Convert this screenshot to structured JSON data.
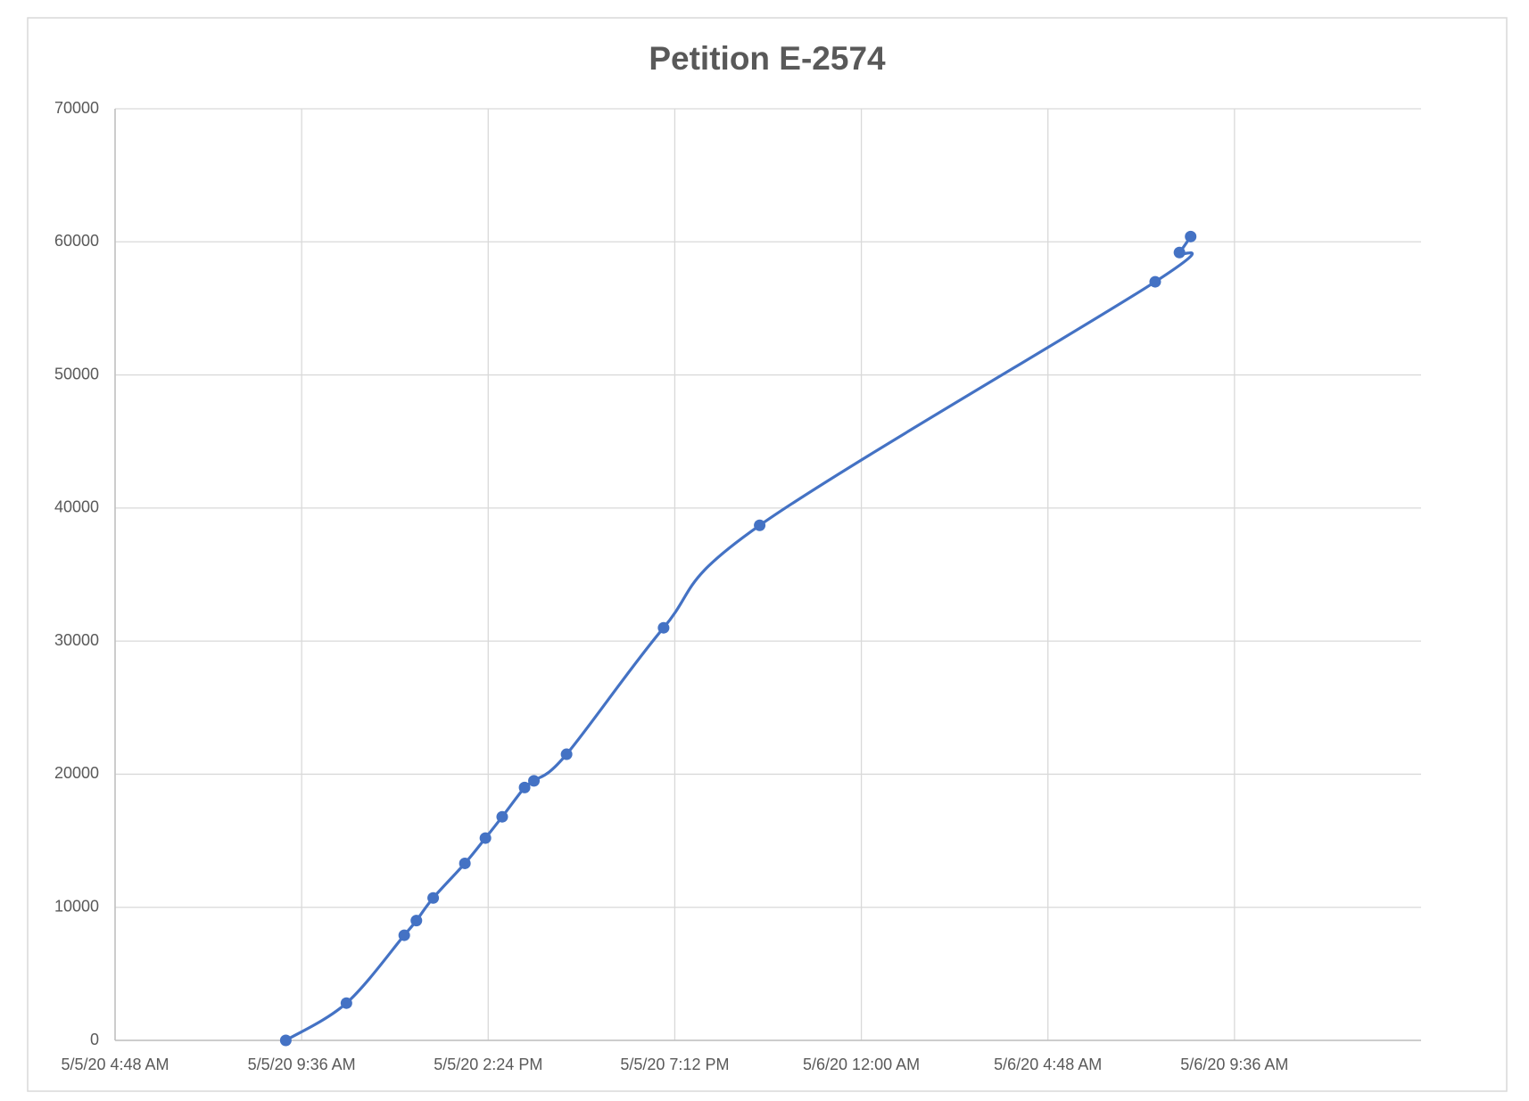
{
  "chart_data": {
    "type": "line",
    "title": "Petition E-2574",
    "x": [
      43956.383,
      43956.448,
      43956.51,
      43956.523,
      43956.541,
      43956.575,
      43956.597,
      43956.615,
      43956.639,
      43956.649,
      43956.684,
      43956.788,
      43956.891,
      43957.315,
      43957.341,
      43957.353
    ],
    "series": [
      {
        "color": "#4472c4",
        "values": [
          0,
          2800,
          7900,
          9000,
          10700,
          13300,
          15200,
          16800,
          19000,
          19500,
          21500,
          31000,
          38700,
          57000,
          59200,
          60400
        ]
      }
    ],
    "xlim": [
      43956.2,
      43957.6
    ],
    "xticks": [
      {
        "value": 43956.2,
        "label": "5/5/20 4:48 AM"
      },
      {
        "value": 43956.4,
        "label": "5/5/20 9:36 AM"
      },
      {
        "value": 43956.6,
        "label": "5/5/20 2:24 PM"
      },
      {
        "value": 43956.8,
        "label": "5/5/20 7:12 PM"
      },
      {
        "value": 43957.0,
        "label": "5/6/20 12:00 AM"
      },
      {
        "value": 43957.2,
        "label": "5/6/20 4:48 AM"
      },
      {
        "value": 43957.4,
        "label": "5/6/20 9:36 AM"
      }
    ],
    "ylim": [
      0,
      70000
    ],
    "yticks": [
      0,
      10000,
      20000,
      30000,
      40000,
      50000,
      60000,
      70000
    ],
    "grid": true,
    "smooth": true
  }
}
